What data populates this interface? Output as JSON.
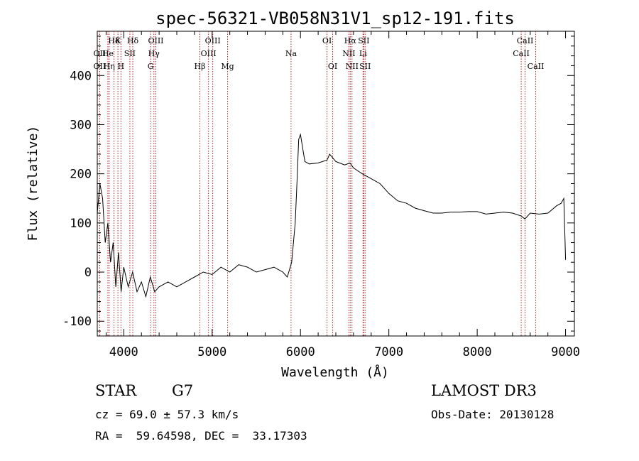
{
  "chart_data": {
    "type": "line",
    "title": "spec-56321-VB058N31V1_sp12-191.fits",
    "xlabel": "Wavelength (Å)",
    "ylabel": "Flux (relative)",
    "xlim": [
      3700,
      9100
    ],
    "ylim": [
      -130,
      490
    ],
    "xticks": [
      4000,
      5000,
      6000,
      7000,
      8000,
      9000
    ],
    "yticks": [
      -100,
      0,
      100,
      200,
      300,
      400
    ],
    "grid": false,
    "line_color": "#000000",
    "marker_color": "#b22222",
    "series": [
      {
        "x": [
          3700,
          3730,
          3760,
          3790,
          3820,
          3850,
          3880,
          3910,
          3940,
          3970,
          4000,
          4050,
          4100,
          4150,
          4200,
          4250,
          4300,
          4350,
          4400,
          4500,
          4600,
          4700,
          4800,
          4900,
          5000,
          5100,
          5200,
          5300,
          5400,
          5500,
          5600,
          5700,
          5800,
          5850,
          5900,
          5920,
          5940,
          5960,
          5980,
          6000,
          6050,
          6100,
          6200,
          6300,
          6330,
          6400,
          6500,
          6560,
          6600,
          6700,
          6800,
          6900,
          7000,
          7100,
          7200,
          7300,
          7400,
          7500,
          7600,
          7700,
          7800,
          7900,
          8000,
          8100,
          8200,
          8300,
          8400,
          8500,
          8540,
          8600,
          8700,
          8800,
          8900,
          8950,
          8980,
          9000
        ],
        "y": [
          120,
          180,
          150,
          60,
          100,
          20,
          60,
          -30,
          40,
          -40,
          10,
          -30,
          0,
          -40,
          -20,
          -50,
          -10,
          -40,
          -30,
          -20,
          -30,
          -20,
          -10,
          0,
          -5,
          10,
          0,
          15,
          10,
          0,
          5,
          10,
          0,
          -10,
          20,
          60,
          100,
          180,
          270,
          280,
          225,
          220,
          222,
          228,
          240,
          225,
          218,
          222,
          212,
          200,
          190,
          180,
          160,
          145,
          140,
          130,
          125,
          120,
          120,
          122,
          122,
          123,
          123,
          118,
          120,
          122,
          120,
          114,
          108,
          120,
          118,
          120,
          135,
          140,
          150,
          25
        ]
      }
    ],
    "spectral_lines": [
      {
        "label": "Hδ",
        "w": 3889,
        "tier": 0
      },
      {
        "label": "K",
        "w": 3934,
        "tier": 0
      },
      {
        "label": "Hδ",
        "w": 4102,
        "tier": 0
      },
      {
        "label": "OII",
        "w": 3727,
        "tier": 1
      },
      {
        "label": "He",
        "w": 3820,
        "tier": 1
      },
      {
        "label": "SII",
        "w": 4069,
        "tier": 1
      },
      {
        "label": "OII",
        "w": 3727,
        "tier": 2
      },
      {
        "label": "Hη",
        "w": 3835,
        "tier": 2
      },
      {
        "label": "H",
        "w": 3968,
        "tier": 2
      },
      {
        "label": "OIII",
        "w": 4363,
        "tier": 0
      },
      {
        "label": "Hγ",
        "w": 4341,
        "tier": 1
      },
      {
        "label": "G",
        "w": 4304,
        "tier": 2
      },
      {
        "label": "OIII",
        "w": 5007,
        "tier": 0
      },
      {
        "label": "OIII",
        "w": 4959,
        "tier": 1
      },
      {
        "label": "Hβ",
        "w": 4861,
        "tier": 2
      },
      {
        "label": "Mg",
        "w": 5175,
        "tier": 2
      },
      {
        "label": "Na",
        "w": 5893,
        "tier": 1
      },
      {
        "label": "OI",
        "w": 6300,
        "tier": 0
      },
      {
        "label": "OI",
        "w": 6364,
        "tier": 2
      },
      {
        "label": "Hα",
        "w": 6563,
        "tier": 0
      },
      {
        "label": "SII",
        "w": 6716,
        "tier": 0
      },
      {
        "label": "NII",
        "w": 6548,
        "tier": 1
      },
      {
        "label": "Li",
        "w": 6708,
        "tier": 1
      },
      {
        "label": "NII",
        "w": 6583,
        "tier": 2
      },
      {
        "label": "SII",
        "w": 6731,
        "tier": 2
      },
      {
        "label": "CaII",
        "w": 8542,
        "tier": 0
      },
      {
        "label": "CaII",
        "w": 8498,
        "tier": 1
      },
      {
        "label": "CaII",
        "w": 8662,
        "tier": 2
      }
    ]
  },
  "info": {
    "object_class": "STAR",
    "subclass": "G7",
    "survey": "LAMOST DR3",
    "redshift": "cz = 69.0 ± 57.3 km/s",
    "obs_date": "Obs-Date: 20130128",
    "coords": "RA =  59.64598, DEC =  33.17303"
  }
}
